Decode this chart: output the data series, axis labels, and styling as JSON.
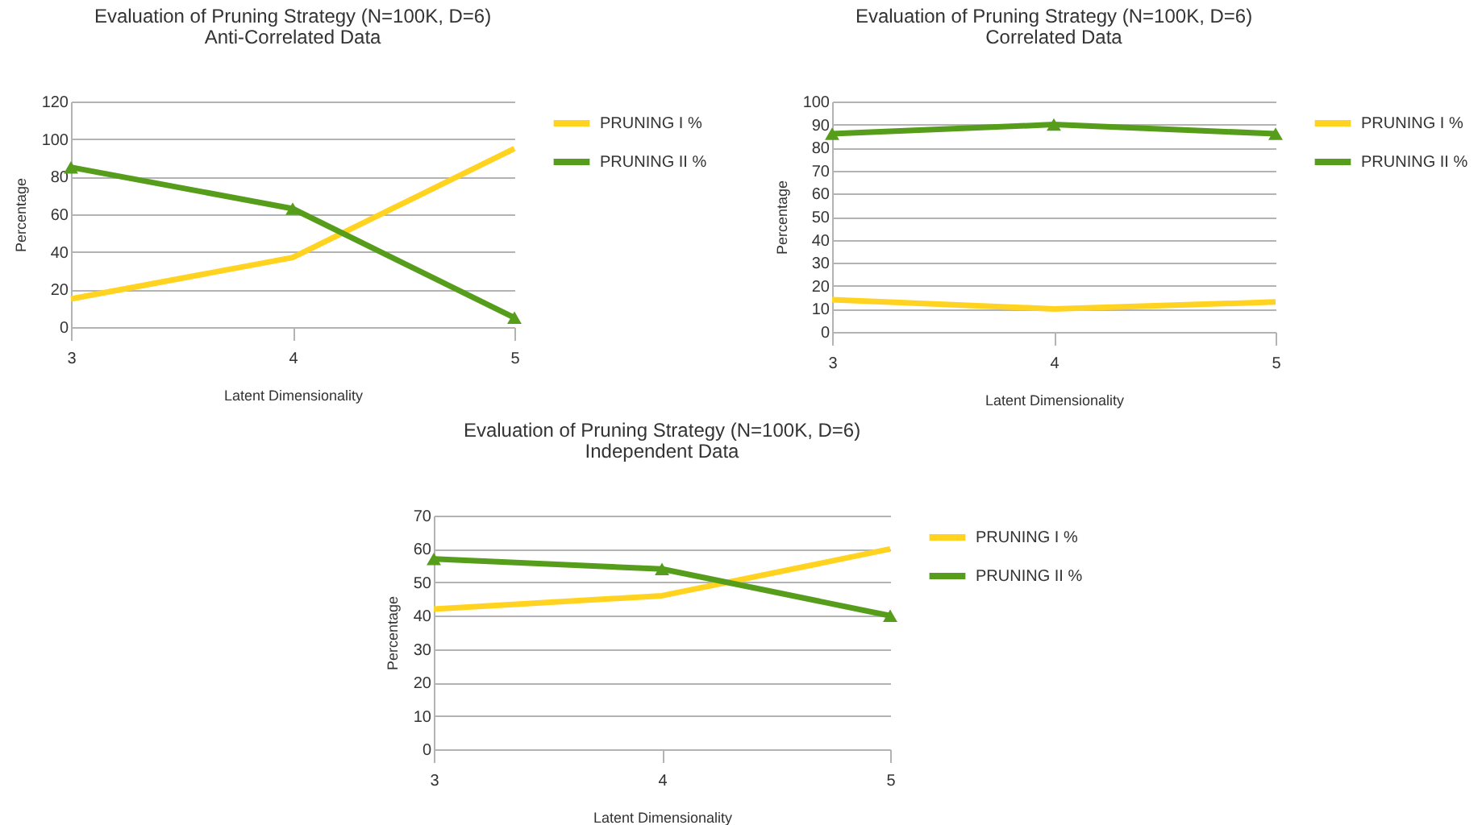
{
  "chart_data": [
    {
      "type": "line",
      "title": "Evaluation of Pruning Strategy (N=100K, D=6)",
      "subtitle": "Anti-Correlated Data",
      "xlabel": "Latent Dimensionality",
      "ylabel": "Percentage",
      "x": [
        3,
        4,
        5
      ],
      "xlim": [
        3,
        5
      ],
      "xticks": [
        3,
        4,
        5
      ],
      "ylim": [
        0,
        120
      ],
      "yticks": [
        0,
        20,
        40,
        60,
        80,
        100,
        120
      ],
      "grid": "y",
      "legend": "right",
      "series": [
        {
          "name": "PRUNING I %",
          "color": "#ffd320",
          "marker": "none",
          "values": [
            15,
            37,
            95
          ]
        },
        {
          "name": "PRUNING II %",
          "color": "#579d1c",
          "marker": "triangle",
          "values": [
            85,
            63,
            5
          ]
        }
      ]
    },
    {
      "type": "line",
      "title": "Evaluation of Pruning Strategy (N=100K, D=6)",
      "subtitle": "Correlated Data",
      "xlabel": "Latent Dimensionality",
      "ylabel": "Percentage",
      "x": [
        3,
        4,
        5
      ],
      "xlim": [
        3,
        5
      ],
      "xticks": [
        3,
        4,
        5
      ],
      "ylim": [
        0,
        100
      ],
      "yticks": [
        0,
        10,
        20,
        30,
        40,
        50,
        60,
        70,
        80,
        90,
        100
      ],
      "grid": "y",
      "legend": "right",
      "series": [
        {
          "name": "PRUNING I %",
          "color": "#ffd320",
          "marker": "none",
          "values": [
            14,
            10,
            13
          ]
        },
        {
          "name": "PRUNING II %",
          "color": "#579d1c",
          "marker": "triangle",
          "values": [
            86,
            90,
            86
          ]
        }
      ]
    },
    {
      "type": "line",
      "title": "Evaluation of Pruning Strategy (N=100K, D=6)",
      "subtitle": "Independent Data",
      "xlabel": "Latent Dimensionality",
      "ylabel": "Percentage",
      "x": [
        3,
        4,
        5
      ],
      "xlim": [
        3,
        5
      ],
      "xticks": [
        3,
        4,
        5
      ],
      "ylim": [
        0,
        70
      ],
      "yticks": [
        0,
        10,
        20,
        30,
        40,
        50,
        60,
        70
      ],
      "grid": "y",
      "legend": "right",
      "series": [
        {
          "name": "PRUNING I %",
          "color": "#ffd320",
          "marker": "none",
          "values": [
            42,
            46,
            60
          ]
        },
        {
          "name": "PRUNING II %",
          "color": "#579d1c",
          "marker": "triangle",
          "values": [
            57,
            54,
            40
          ]
        }
      ]
    }
  ]
}
